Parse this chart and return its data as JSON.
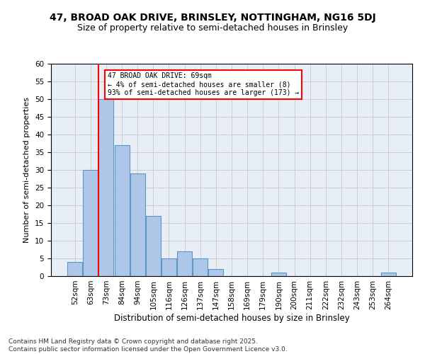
{
  "title1": "47, BROAD OAK DRIVE, BRINSLEY, NOTTINGHAM, NG16 5DJ",
  "title2": "Size of property relative to semi-detached houses in Brinsley",
  "xlabel": "Distribution of semi-detached houses by size in Brinsley",
  "ylabel": "Number of semi-detached properties",
  "categories": [
    "52sqm",
    "63sqm",
    "73sqm",
    "84sqm",
    "94sqm",
    "105sqm",
    "116sqm",
    "126sqm",
    "137sqm",
    "147sqm",
    "158sqm",
    "169sqm",
    "179sqm",
    "190sqm",
    "200sqm",
    "211sqm",
    "222sqm",
    "232sqm",
    "243sqm",
    "253sqm",
    "264sqm"
  ],
  "bar_values": [
    4,
    30,
    50,
    37,
    29,
    17,
    5,
    7,
    5,
    2,
    0,
    0,
    0,
    1,
    0,
    0,
    0,
    0,
    0,
    0,
    1
  ],
  "bar_color": "#aec6e8",
  "bar_edge_color": "#5a96c8",
  "vline_x": 1.5,
  "vline_color": "red",
  "annotation_text": "47 BROAD OAK DRIVE: 69sqm\n← 4% of semi-detached houses are smaller (8)\n93% of semi-detached houses are larger (173) →",
  "annotation_box_color": "white",
  "annotation_box_edge": "red",
  "ylim": [
    0,
    60
  ],
  "yticks": [
    0,
    5,
    10,
    15,
    20,
    25,
    30,
    35,
    40,
    45,
    50,
    55,
    60
  ],
  "grid_color": "#cccccc",
  "bg_color": "#e8eef5",
  "footer": "Contains HM Land Registry data © Crown copyright and database right 2025.\nContains public sector information licensed under the Open Government Licence v3.0.",
  "title1_fontsize": 10,
  "title2_fontsize": 9,
  "xlabel_fontsize": 8.5,
  "ylabel_fontsize": 8,
  "tick_fontsize": 7.5,
  "footer_fontsize": 6.5
}
